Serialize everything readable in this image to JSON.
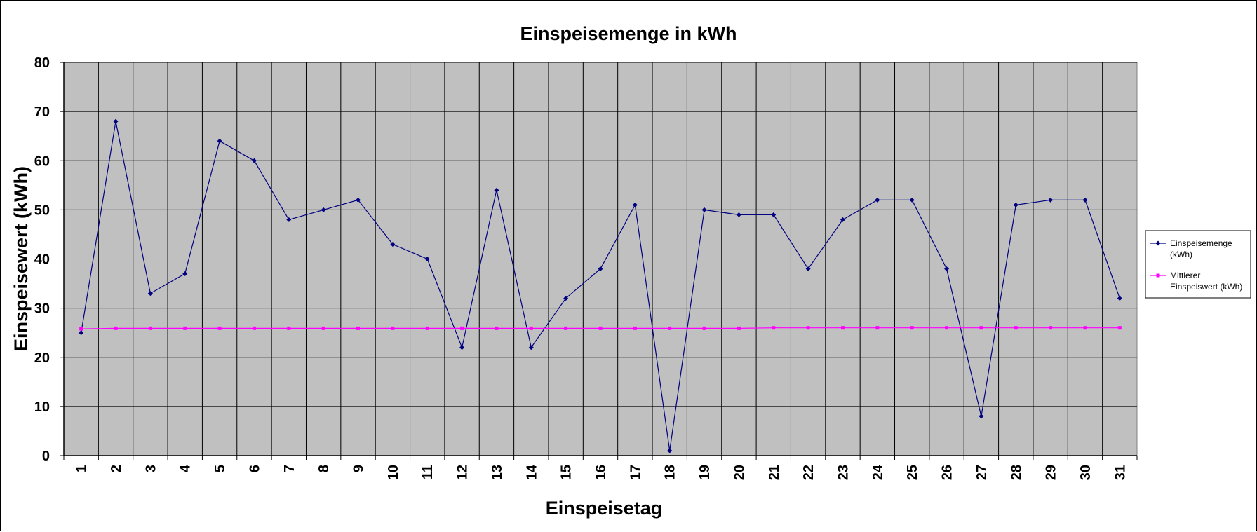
{
  "chart_data": {
    "type": "line",
    "title": "Einspeisemenge in kWh",
    "xlabel": "Einspeisetag",
    "ylabel": "Einspeisewert  (kWh)",
    "categories": [
      "1",
      "2",
      "3",
      "4",
      "5",
      "6",
      "7",
      "8",
      "9",
      "10",
      "11",
      "12",
      "13",
      "14",
      "15",
      "16",
      "17",
      "18",
      "19",
      "20",
      "21",
      "22",
      "23",
      "24",
      "25",
      "26",
      "27",
      "28",
      "29",
      "30",
      "31"
    ],
    "ylim": [
      0,
      80
    ],
    "yticks": [
      0,
      10,
      20,
      30,
      40,
      50,
      60,
      70,
      80
    ],
    "grid": true,
    "legend_position": "right",
    "plot_background": "#c0c0c0",
    "series": [
      {
        "name": "Einspeisemenge (kWh)",
        "legend_lines": [
          "Einspeisemenge",
          "(kWh)"
        ],
        "color": "#000080",
        "marker": "diamond",
        "values": [
          25,
          68,
          33,
          37,
          64,
          60,
          48,
          50,
          52,
          43,
          40,
          22,
          54,
          22,
          32,
          38,
          51,
          1,
          50,
          49,
          49,
          38,
          48,
          52,
          52,
          38,
          8,
          51,
          52,
          52,
          32
        ]
      },
      {
        "name": "Mittlerer Einspeiswert (kWh)",
        "legend_lines": [
          "Mittlerer",
          "Einspeiswert (kWh)"
        ],
        "color": "#ff00ff",
        "marker": "square",
        "values": [
          25.8,
          25.9,
          25.9,
          25.9,
          25.9,
          25.9,
          25.9,
          25.9,
          25.9,
          25.9,
          25.9,
          25.9,
          25.9,
          25.9,
          25.9,
          25.9,
          25.9,
          25.9,
          25.9,
          25.9,
          26,
          26,
          26,
          26,
          26,
          26,
          26,
          26,
          26,
          26,
          26
        ]
      }
    ]
  }
}
